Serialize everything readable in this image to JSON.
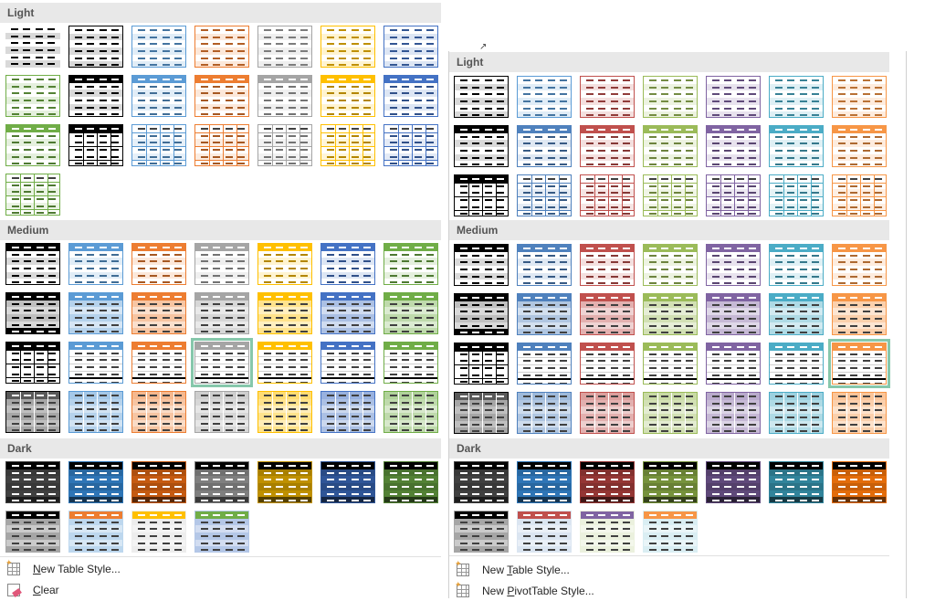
{
  "left_gallery": {
    "sections": [
      {
        "label": "Light",
        "rows": [
          [
            {
              "a": "#ffffff",
              "p": "#000000",
              "e": "light"
            },
            {
              "a": "#000000",
              "p": "#000000",
              "e": "light"
            },
            {
              "a": "#5b9bd5",
              "p": "#5b9bd5",
              "e": "light"
            },
            {
              "a": "#ed7d31",
              "p": "#ed7d31",
              "e": "light"
            },
            {
              "a": "#a5a5a5",
              "p": "#a5a5a5",
              "e": "light"
            },
            {
              "a": "#ffc000",
              "p": "#ffc000",
              "e": "light"
            },
            {
              "a": "#4472c4",
              "p": "#4472c4",
              "e": "light"
            }
          ],
          [
            {
              "a": "#70ad47",
              "p": "#70ad47",
              "e": "light"
            },
            {
              "a": "#000000",
              "p": "#000000",
              "e": "header"
            },
            {
              "a": "#5b9bd5",
              "p": "#5b9bd5",
              "e": "header"
            },
            {
              "a": "#ed7d31",
              "p": "#ed7d31",
              "e": "header"
            },
            {
              "a": "#a5a5a5",
              "p": "#a5a5a5",
              "e": "header"
            },
            {
              "a": "#ffc000",
              "p": "#ffc000",
              "e": "header"
            },
            {
              "a": "#4472c4",
              "p": "#4472c4",
              "e": "header"
            }
          ],
          [
            {
              "a": "#70ad47",
              "p": "#70ad47",
              "e": "header"
            },
            {
              "a": "#000000",
              "p": "#000000",
              "e": "grid"
            },
            {
              "a": "#5b9bd5",
              "p": "#5b9bd5",
              "e": "grid"
            },
            {
              "a": "#ed7d31",
              "p": "#ed7d31",
              "e": "grid"
            },
            {
              "a": "#a5a5a5",
              "p": "#a5a5a5",
              "e": "grid"
            },
            {
              "a": "#ffc000",
              "p": "#ffc000",
              "e": "grid"
            },
            {
              "a": "#4472c4",
              "p": "#4472c4",
              "e": "grid"
            }
          ],
          [
            {
              "a": "#70ad47",
              "p": "#70ad47",
              "e": "grid"
            }
          ]
        ]
      },
      {
        "label": "Medium",
        "rows": [
          [
            {
              "a": "#000000",
              "p": "#000000",
              "e": "header"
            },
            {
              "a": "#5b9bd5",
              "p": "#5b9bd5",
              "e": "header"
            },
            {
              "a": "#ed7d31",
              "p": "#ed7d31",
              "e": "header"
            },
            {
              "a": "#a5a5a5",
              "p": "#a5a5a5",
              "e": "header"
            },
            {
              "a": "#ffc000",
              "p": "#ffc000",
              "e": "header"
            },
            {
              "a": "#4472c4",
              "p": "#4472c4",
              "e": "header"
            },
            {
              "a": "#70ad47",
              "p": "#70ad47",
              "e": "header"
            }
          ],
          [
            {
              "a": "#000000",
              "p": "#000000",
              "e": "fill"
            },
            {
              "a": "#5b9bd5",
              "p": "#5b9bd5",
              "e": "fill"
            },
            {
              "a": "#ed7d31",
              "p": "#ed7d31",
              "e": "fill"
            },
            {
              "a": "#a5a5a5",
              "p": "#a5a5a5",
              "e": "fill"
            },
            {
              "a": "#ffc000",
              "p": "#ffc000",
              "e": "fill"
            },
            {
              "a": "#4472c4",
              "p": "#4472c4",
              "e": "fill"
            },
            {
              "a": "#70ad47",
              "p": "#70ad47",
              "e": "fill"
            }
          ],
          [
            {
              "a": "#000000",
              "p": "#000000",
              "e": "grid"
            },
            {
              "a": "#5b9bd5",
              "p": "#5b9bd5",
              "e": "plain"
            },
            {
              "a": "#ed7d31",
              "p": "#ed7d31",
              "e": "plain"
            },
            {
              "a": "#a5a5a5",
              "p": "#a5a5a5",
              "e": "plain",
              "sel": true
            },
            {
              "a": "#ffc000",
              "p": "#ffc000",
              "e": "plain"
            },
            {
              "a": "#4472c4",
              "p": "#4472c4",
              "e": "plain"
            },
            {
              "a": "#70ad47",
              "p": "#70ad47",
              "e": "plain"
            }
          ],
          [
            {
              "a": "#000000",
              "p": "#000000",
              "e": "gridfill"
            },
            {
              "a": "#5b9bd5",
              "p": "#5b9bd5",
              "e": "gridfill"
            },
            {
              "a": "#ed7d31",
              "p": "#ed7d31",
              "e": "gridfill"
            },
            {
              "a": "#a5a5a5",
              "p": "#a5a5a5",
              "e": "gridfill"
            },
            {
              "a": "#ffc000",
              "p": "#ffc000",
              "e": "gridfill"
            },
            {
              "a": "#4472c4",
              "p": "#4472c4",
              "e": "gridfill"
            },
            {
              "a": "#70ad47",
              "p": "#70ad47",
              "e": "gridfill"
            }
          ]
        ]
      },
      {
        "label": "Dark",
        "rows": [
          [
            {
              "a": "#000000",
              "p": "#404040",
              "e": "dark"
            },
            {
              "a": "#000000",
              "p": "#2e75b6",
              "e": "dark"
            },
            {
              "a": "#000000",
              "p": "#c55a11",
              "e": "dark"
            },
            {
              "a": "#000000",
              "p": "#7f7f7f",
              "e": "dark"
            },
            {
              "a": "#000000",
              "p": "#bf9000",
              "e": "dark"
            },
            {
              "a": "#000000",
              "p": "#2f5597",
              "e": "dark"
            },
            {
              "a": "#000000",
              "p": "#538135",
              "e": "dark"
            }
          ],
          [
            {
              "a": "#000000",
              "p": "#a6a6a6",
              "e": "darkhead"
            },
            {
              "a": "#ed7d31",
              "p": "#bdd7ee",
              "e": "darkhead"
            },
            {
              "a": "#ffc000",
              "p": "#ededed",
              "e": "darkhead"
            },
            {
              "a": "#70ad47",
              "p": "#b4c7e7",
              "e": "darkhead"
            }
          ]
        ]
      }
    ],
    "menu": [
      {
        "label": "New Table Style...",
        "accel": "N",
        "icon": "new-table-style-icon"
      },
      {
        "label": "Clear",
        "accel": "C",
        "icon": "clear-icon"
      }
    ]
  },
  "right_gallery": {
    "sections": [
      {
        "label": "Light",
        "rows": [
          [
            {
              "a": "#000000",
              "p": "#000000",
              "e": "light"
            },
            {
              "a": "#5b9bd5",
              "p": "#5b9bd5",
              "e": "light"
            },
            {
              "a": "#c0504d",
              "p": "#c0504d",
              "e": "light"
            },
            {
              "a": "#9bbb59",
              "p": "#9bbb59",
              "e": "light"
            },
            {
              "a": "#8064a2",
              "p": "#8064a2",
              "e": "light"
            },
            {
              "a": "#4bacc6",
              "p": "#4bacc6",
              "e": "light"
            },
            {
              "a": "#f79646",
              "p": "#f79646",
              "e": "light"
            }
          ],
          [
            {
              "a": "#000000",
              "p": "#000000",
              "e": "header"
            },
            {
              "a": "#4f81bd",
              "p": "#4f81bd",
              "e": "header"
            },
            {
              "a": "#c0504d",
              "p": "#c0504d",
              "e": "header"
            },
            {
              "a": "#9bbb59",
              "p": "#9bbb59",
              "e": "header"
            },
            {
              "a": "#8064a2",
              "p": "#8064a2",
              "e": "header"
            },
            {
              "a": "#4bacc6",
              "p": "#4bacc6",
              "e": "header"
            },
            {
              "a": "#f79646",
              "p": "#f79646",
              "e": "header"
            }
          ],
          [
            {
              "a": "#000000",
              "p": "#000000",
              "e": "grid"
            },
            {
              "a": "#4f81bd",
              "p": "#4f81bd",
              "e": "grid"
            },
            {
              "a": "#c0504d",
              "p": "#c0504d",
              "e": "grid"
            },
            {
              "a": "#9bbb59",
              "p": "#9bbb59",
              "e": "grid"
            },
            {
              "a": "#8064a2",
              "p": "#8064a2",
              "e": "grid"
            },
            {
              "a": "#4bacc6",
              "p": "#4bacc6",
              "e": "grid"
            },
            {
              "a": "#f79646",
              "p": "#f79646",
              "e": "grid"
            }
          ]
        ]
      },
      {
        "label": "Medium",
        "rows": [
          [
            {
              "a": "#000000",
              "p": "#000000",
              "e": "header"
            },
            {
              "a": "#4f81bd",
              "p": "#4f81bd",
              "e": "header"
            },
            {
              "a": "#c0504d",
              "p": "#c0504d",
              "e": "header"
            },
            {
              "a": "#9bbb59",
              "p": "#9bbb59",
              "e": "header"
            },
            {
              "a": "#8064a2",
              "p": "#8064a2",
              "e": "header"
            },
            {
              "a": "#4bacc6",
              "p": "#4bacc6",
              "e": "header"
            },
            {
              "a": "#f79646",
              "p": "#f79646",
              "e": "header"
            }
          ],
          [
            {
              "a": "#000000",
              "p": "#000000",
              "e": "fill"
            },
            {
              "a": "#4f81bd",
              "p": "#4f81bd",
              "e": "fill"
            },
            {
              "a": "#c0504d",
              "p": "#c0504d",
              "e": "fill"
            },
            {
              "a": "#9bbb59",
              "p": "#9bbb59",
              "e": "fill"
            },
            {
              "a": "#8064a2",
              "p": "#8064a2",
              "e": "fill"
            },
            {
              "a": "#4bacc6",
              "p": "#4bacc6",
              "e": "fill"
            },
            {
              "a": "#f79646",
              "p": "#f79646",
              "e": "fill"
            }
          ],
          [
            {
              "a": "#000000",
              "p": "#000000",
              "e": "grid"
            },
            {
              "a": "#4f81bd",
              "p": "#4f81bd",
              "e": "plain"
            },
            {
              "a": "#c0504d",
              "p": "#c0504d",
              "e": "plain"
            },
            {
              "a": "#9bbb59",
              "p": "#9bbb59",
              "e": "plain"
            },
            {
              "a": "#8064a2",
              "p": "#8064a2",
              "e": "plain"
            },
            {
              "a": "#4bacc6",
              "p": "#4bacc6",
              "e": "plain"
            },
            {
              "a": "#f79646",
              "p": "#f79646",
              "e": "plain",
              "sel": true
            }
          ],
          [
            {
              "a": "#000000",
              "p": "#000000",
              "e": "gridfill"
            },
            {
              "a": "#4f81bd",
              "p": "#4f81bd",
              "e": "gridfill"
            },
            {
              "a": "#c0504d",
              "p": "#c0504d",
              "e": "gridfill"
            },
            {
              "a": "#9bbb59",
              "p": "#9bbb59",
              "e": "gridfill"
            },
            {
              "a": "#8064a2",
              "p": "#8064a2",
              "e": "gridfill"
            },
            {
              "a": "#4bacc6",
              "p": "#4bacc6",
              "e": "gridfill"
            },
            {
              "a": "#f79646",
              "p": "#f79646",
              "e": "gridfill"
            }
          ]
        ]
      },
      {
        "label": "Dark",
        "rows": [
          [
            {
              "a": "#000000",
              "p": "#404040",
              "e": "dark"
            },
            {
              "a": "#000000",
              "p": "#2e75b6",
              "e": "dark"
            },
            {
              "a": "#000000",
              "p": "#943634",
              "e": "dark"
            },
            {
              "a": "#000000",
              "p": "#76923c",
              "e": "dark"
            },
            {
              "a": "#000000",
              "p": "#5f497a",
              "e": "dark"
            },
            {
              "a": "#000000",
              "p": "#31849b",
              "e": "dark"
            },
            {
              "a": "#000000",
              "p": "#e36c0a",
              "e": "dark"
            }
          ],
          [
            {
              "a": "#000000",
              "p": "#a6a6a6",
              "e": "darkhead"
            },
            {
              "a": "#c0504d",
              "p": "#dbe5f1",
              "e": "darkhead"
            },
            {
              "a": "#8064a2",
              "p": "#ebf1de",
              "e": "darkhead"
            },
            {
              "a": "#f79646",
              "p": "#daeef3",
              "e": "darkhead"
            }
          ]
        ]
      }
    ],
    "menu": [
      {
        "label": "New Table Style...",
        "accel": "T",
        "icon": "new-table-style-icon"
      },
      {
        "label": "New PivotTable Style...",
        "accel": "P",
        "icon": "new-pivottable-style-icon"
      }
    ]
  }
}
